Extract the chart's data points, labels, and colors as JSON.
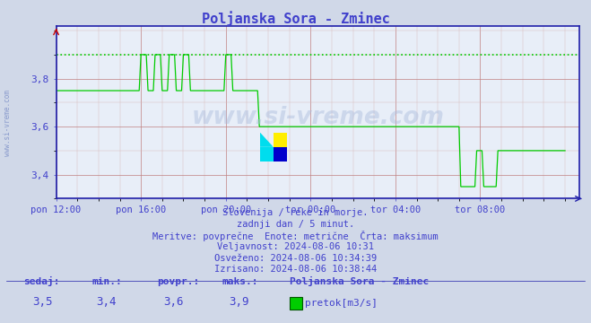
{
  "title": "Poljanska Sora - Zminec",
  "title_color": "#4040cc",
  "bg_color": "#d0d8e8",
  "plot_bg_color": "#e8eef8",
  "grid_color_major": "#c08080",
  "grid_color_minor": "#d8b8b8",
  "axis_color": "#2020aa",
  "line_color": "#00cc00",
  "max_line_color": "#00cc00",
  "x_min": 0,
  "x_max": 296,
  "y_min": 3.3,
  "y_max": 4.02,
  "yticks": [
    3.4,
    3.6,
    3.8
  ],
  "xtick_labels": [
    "pon 12:00",
    "pon 16:00",
    "pon 20:00",
    "tor 00:00",
    "tor 04:00",
    "tor 08:00"
  ],
  "xtick_positions": [
    0,
    48,
    96,
    144,
    192,
    240
  ],
  "max_value": 3.9,
  "subtitle_lines": [
    "Slovenija / reke in morje.",
    "zadnji dan / 5 minut.",
    "Meritve: povprečne  Enote: metrične  Črta: maksimum",
    "Veljavnost: 2024-08-06 10:31",
    "Osveženo: 2024-08-06 10:34:39",
    "Izrisano: 2024-08-06 10:38:44"
  ],
  "footer_labels": [
    "sedaj:",
    "min.:",
    "povpr.:",
    "maks.:"
  ],
  "footer_values": [
    "3,5",
    "3,4",
    "3,6",
    "3,9"
  ],
  "footer_station": "Poljanska Sora - Zminec",
  "footer_legend": "pretok[m3/s]",
  "watermark": "www.si-vreme.com",
  "left_watermark": "www.si-vreme.com",
  "text_color": "#4040cc",
  "watermark_color": "#8899cc"
}
